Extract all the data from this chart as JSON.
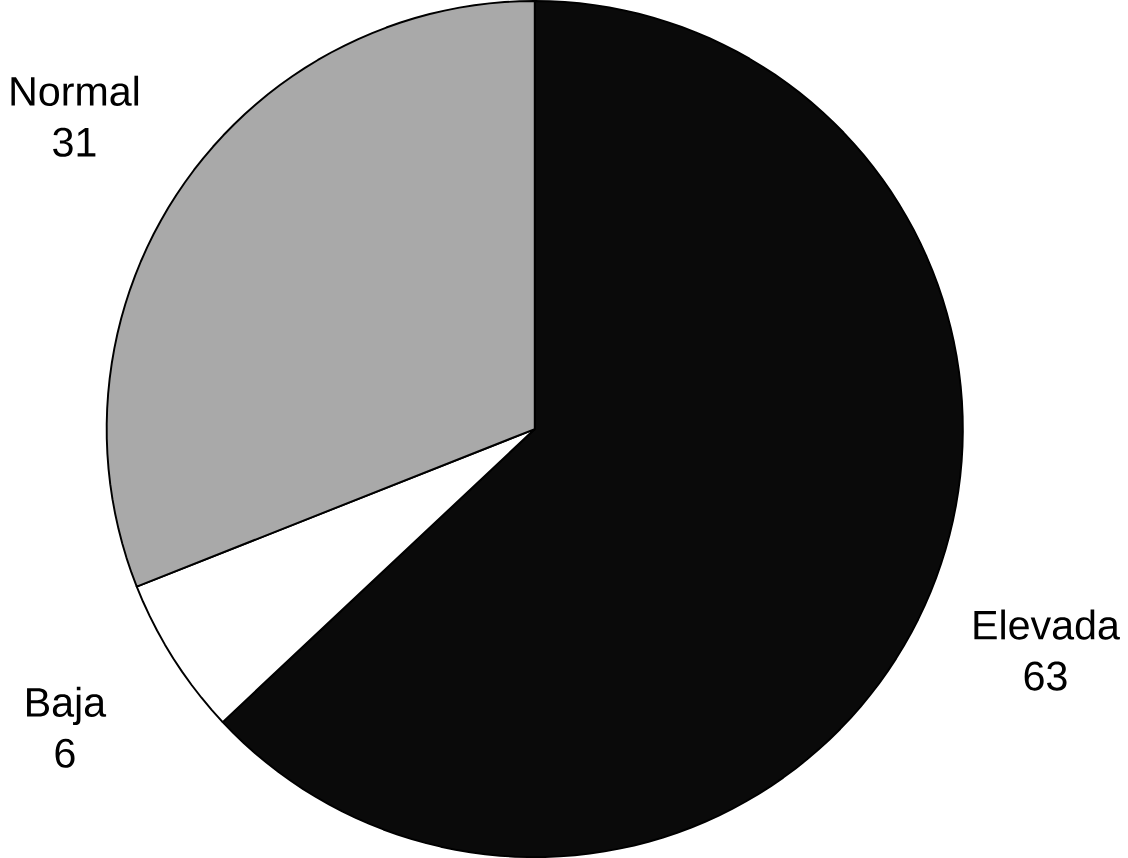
{
  "chart_data": {
    "type": "pie",
    "categories": [
      "Elevada",
      "Baja",
      "Normal"
    ],
    "values": [
      63,
      6,
      31
    ],
    "colors": [
      "#0a0a0a",
      "#ffffff",
      "#a9a9a9"
    ],
    "data_labels": true
  }
}
